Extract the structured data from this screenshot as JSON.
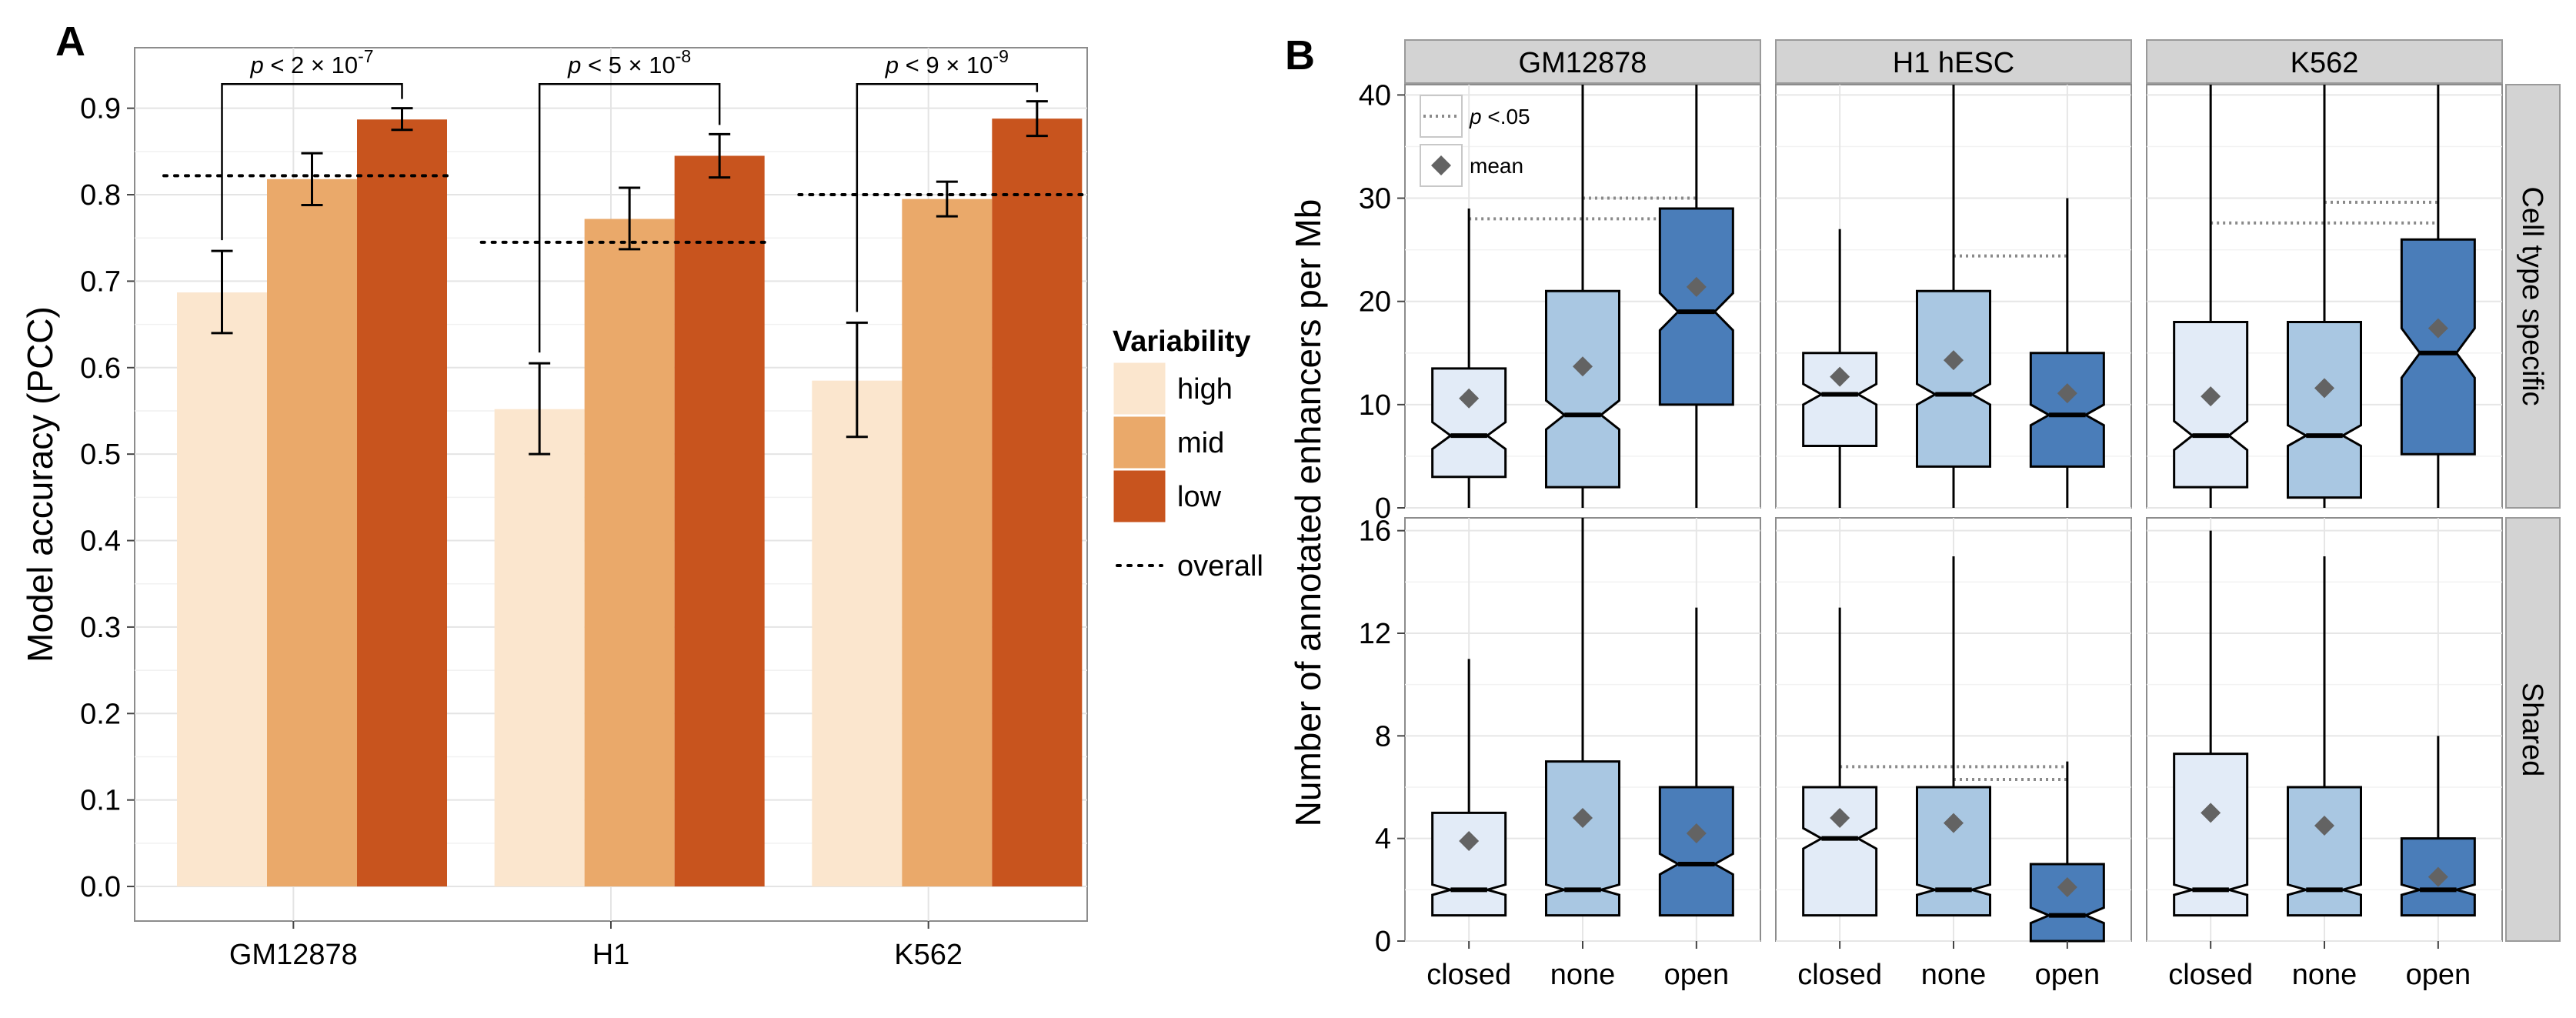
{
  "chart_data": [
    {
      "panel": "A",
      "type": "bar",
      "ylabel": "Model accuracy (PCC)",
      "xlabel": "",
      "ylim": [
        -0.04,
        0.97
      ],
      "y_ticks": [
        "0.0",
        "0.1",
        "0.2",
        "0.3",
        "0.4",
        "0.5",
        "0.6",
        "0.7",
        "0.8",
        "0.9"
      ],
      "grid": true,
      "categories": [
        "GM12878",
        "H1",
        "K562"
      ],
      "series": [
        {
          "name": "high",
          "color": "#FBE6CE",
          "values": [
            0.687,
            0.552,
            0.585
          ],
          "err_low": [
            0.64,
            0.5,
            0.52
          ],
          "err_high": [
            0.735,
            0.605,
            0.652
          ]
        },
        {
          "name": "mid",
          "color": "#EAA96A",
          "values": [
            0.818,
            0.772,
            0.795
          ],
          "err_low": [
            0.788,
            0.737,
            0.775
          ],
          "err_high": [
            0.848,
            0.808,
            0.815
          ]
        },
        {
          "name": "low",
          "color": "#C8541E",
          "values": [
            0.887,
            0.845,
            0.888
          ],
          "err_low": [
            0.875,
            0.82,
            0.868
          ],
          "err_high": [
            0.9,
            0.87,
            0.908
          ]
        }
      ],
      "overall": [
        0.822,
        0.745,
        0.8
      ],
      "annotations": [
        {
          "category": "GM12878",
          "prefix": "p < 2 × 10",
          "exponent": "-7"
        },
        {
          "category": "H1",
          "prefix": "p < 5 × 10",
          "exponent": "-8"
        },
        {
          "category": "K562",
          "prefix": "p < 9 × 10",
          "exponent": "-9"
        }
      ],
      "legend": {
        "title": "Variability",
        "placement": "right",
        "items": [
          {
            "label": "high",
            "color": "#FBE6CE"
          },
          {
            "label": "mid",
            "color": "#EAA96A"
          },
          {
            "label": "low",
            "color": "#C8541E"
          }
        ],
        "overall_label": "overall"
      }
    },
    {
      "panel": "B",
      "type": "boxplot",
      "ylabel": "Number of annotated enhancers per Mb",
      "columns": [
        "GM12878",
        "H1 hESC",
        "K562"
      ],
      "rows": [
        "Cell type specific",
        "Shared"
      ],
      "categories": [
        "closed",
        "none",
        "open"
      ],
      "fill_colors": [
        "#E2EBF7",
        "#A9C7E2",
        "#4A7DB9"
      ],
      "row_scales": [
        {
          "ylim": [
            0,
            41
          ],
          "ticks": [
            0,
            10,
            20,
            30,
            40
          ]
        },
        {
          "ylim": [
            0,
            16.5
          ],
          "ticks": [
            0,
            4,
            8,
            12,
            16
          ]
        }
      ],
      "inset_legend": {
        "sig_prefix": "p",
        "sig_suffix": " <.05",
        "mean_label": "mean"
      },
      "facets": [
        {
          "row": 0,
          "col": 0,
          "boxes": [
            {
              "whisker_low": 0,
              "q1": 3,
              "median": 7,
              "q3": 13.5,
              "whisker_high": 29,
              "notch_low": 5.7,
              "notch_high": 8.3,
              "mean": 10.6
            },
            {
              "whisker_low": 0,
              "q1": 2,
              "median": 9,
              "q3": 21,
              "whisker_high": 41,
              "notch_low": 7.6,
              "notch_high": 10.4,
              "mean": 13.7
            },
            {
              "whisker_low": 0,
              "q1": 10,
              "median": 19,
              "q3": 29,
              "whisker_high": 41,
              "notch_low": 17.2,
              "notch_high": 20.8,
              "mean": 21.4
            }
          ],
          "sig": [
            {
              "from": 0,
              "to": 2,
              "y": 28
            },
            {
              "from": 1,
              "to": 2,
              "y": 30
            }
          ]
        },
        {
          "row": 0,
          "col": 1,
          "boxes": [
            {
              "whisker_low": 0,
              "q1": 6,
              "median": 11,
              "q3": 15,
              "whisker_high": 27,
              "notch_low": 10,
              "notch_high": 12,
              "mean": 12.7
            },
            {
              "whisker_low": 0,
              "q1": 4,
              "median": 11,
              "q3": 21,
              "whisker_high": 41,
              "notch_low": 10,
              "notch_high": 12,
              "mean": 14.3
            },
            {
              "whisker_low": 0,
              "q1": 4,
              "median": 9,
              "q3": 15,
              "whisker_high": 30,
              "notch_low": 8,
              "notch_high": 10,
              "mean": 11.1
            }
          ],
          "sig": [
            {
              "from": 1,
              "to": 2,
              "y": 24.4
            }
          ]
        },
        {
          "row": 0,
          "col": 2,
          "boxes": [
            {
              "whisker_low": 0,
              "q1": 2,
              "median": 7,
              "q3": 18,
              "whisker_high": 41,
              "notch_low": 5.6,
              "notch_high": 8.4,
              "mean": 10.8
            },
            {
              "whisker_low": 0,
              "q1": 1,
              "median": 7,
              "q3": 18,
              "whisker_high": 41,
              "notch_low": 6,
              "notch_high": 8,
              "mean": 11.6
            },
            {
              "whisker_low": 0,
              "q1": 5.2,
              "median": 15,
              "q3": 26,
              "whisker_high": 41,
              "notch_low": 12.6,
              "notch_high": 17.4,
              "mean": 17.4
            }
          ],
          "sig": [
            {
              "from": 0,
              "to": 2,
              "y": 27.6
            },
            {
              "from": 1,
              "to": 2,
              "y": 29.6
            }
          ]
        },
        {
          "row": 1,
          "col": 0,
          "boxes": [
            {
              "whisker_low": 1,
              "q1": 1,
              "median": 2,
              "q3": 5,
              "whisker_high": 11,
              "notch_low": 1.8,
              "notch_high": 2.2,
              "mean": 3.9
            },
            {
              "whisker_low": 1,
              "q1": 1,
              "median": 2,
              "q3": 7,
              "whisker_high": 16.5,
              "notch_low": 1.8,
              "notch_high": 2.2,
              "mean": 4.8
            },
            {
              "whisker_low": 1,
              "q1": 1,
              "median": 3,
              "q3": 6,
              "whisker_high": 13,
              "notch_low": 2.6,
              "notch_high": 3.4,
              "mean": 4.2
            }
          ],
          "sig": []
        },
        {
          "row": 1,
          "col": 1,
          "boxes": [
            {
              "whisker_low": 1,
              "q1": 1,
              "median": 4,
              "q3": 6,
              "whisker_high": 13,
              "notch_low": 3.6,
              "notch_high": 4.4,
              "mean": 4.8
            },
            {
              "whisker_low": 1,
              "q1": 1,
              "median": 2,
              "q3": 6,
              "whisker_high": 15,
              "notch_low": 1.8,
              "notch_high": 2.2,
              "mean": 4.6
            },
            {
              "whisker_low": 0,
              "q1": 0,
              "median": 1,
              "q3": 3,
              "whisker_high": 7,
              "notch_low": 0.7,
              "notch_high": 1.3,
              "mean": 2.1
            }
          ],
          "sig": [
            {
              "from": 0,
              "to": 2,
              "y": 6.8
            },
            {
              "from": 1,
              "to": 2,
              "y": 6.3
            }
          ]
        },
        {
          "row": 1,
          "col": 2,
          "boxes": [
            {
              "whisker_low": 1,
              "q1": 1,
              "median": 2,
              "q3": 7.3,
              "whisker_high": 16,
              "notch_low": 1.8,
              "notch_high": 2.2,
              "mean": 5
            },
            {
              "whisker_low": 1,
              "q1": 1,
              "median": 2,
              "q3": 6,
              "whisker_high": 15,
              "notch_low": 1.8,
              "notch_high": 2.2,
              "mean": 4.5
            },
            {
              "whisker_low": 1,
              "q1": 1,
              "median": 2,
              "q3": 4,
              "whisker_high": 8,
              "notch_low": 1.8,
              "notch_high": 2.2,
              "mean": 2.5
            }
          ],
          "sig": []
        }
      ]
    }
  ],
  "panel_labels": {
    "a": "A",
    "b": "B"
  }
}
